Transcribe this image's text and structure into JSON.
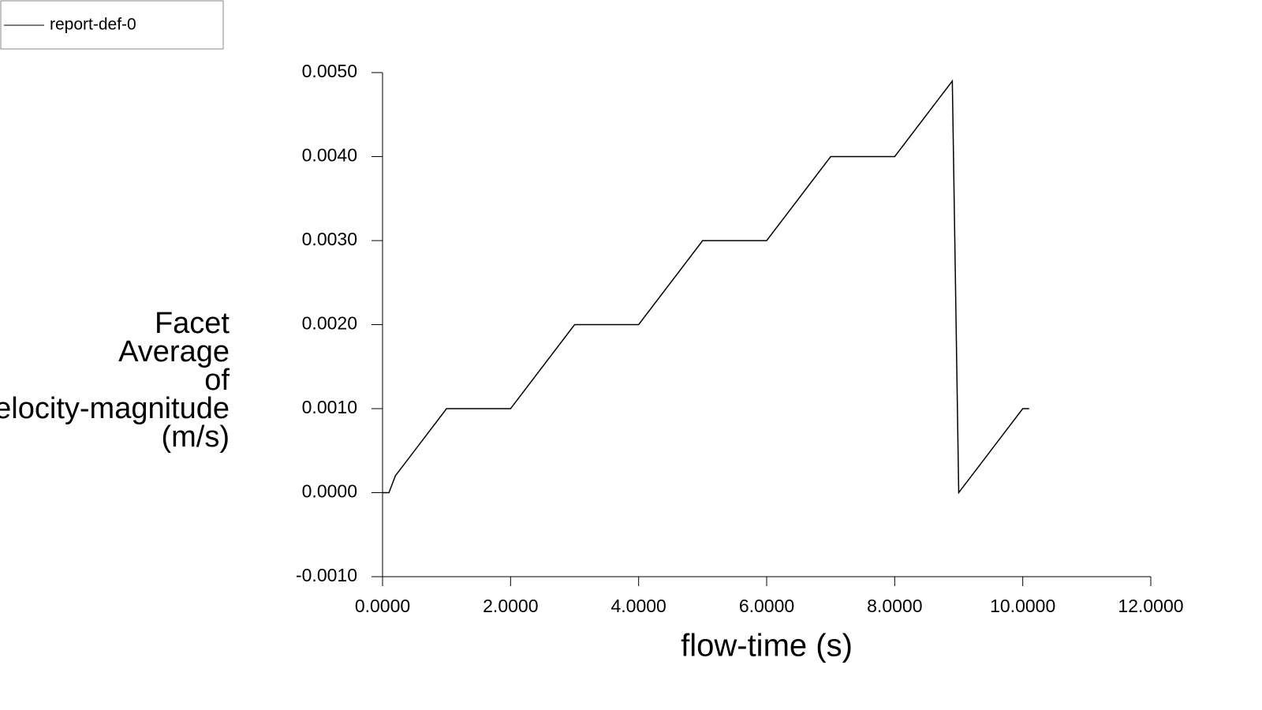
{
  "chart_data": {
    "type": "line",
    "xlabel": "flow-time (s)",
    "ylabel_lines": [
      "Facet",
      "Average",
      "of",
      "Velocity-magnitude",
      "(m/s)"
    ],
    "series": [
      {
        "name": "report-def-0",
        "color": "#000000",
        "x": [
          0,
          0.1,
          0.2,
          1,
          2,
          3,
          4,
          5,
          6,
          7,
          8,
          8.9,
          9,
          10,
          10.1
        ],
        "values": [
          0,
          0,
          0.0002,
          0.001,
          0.001,
          0.002,
          0.002,
          0.003,
          0.003,
          0.004,
          0.004,
          0.0049,
          0,
          0.001,
          0.001
        ]
      }
    ],
    "xlim": [
      0,
      12
    ],
    "xticks": [
      {
        "value": 0,
        "label": "0.0000"
      },
      {
        "value": 2,
        "label": "2.0000"
      },
      {
        "value": 4,
        "label": "4.0000"
      },
      {
        "value": 6,
        "label": "6.0000"
      },
      {
        "value": 8,
        "label": "8.0000"
      },
      {
        "value": 10,
        "label": "10.0000"
      },
      {
        "value": 12,
        "label": "12.0000"
      }
    ],
    "ylim": [
      -0.001,
      0.005
    ],
    "yticks": [
      {
        "value": -0.001,
        "label": "-0.0010"
      },
      {
        "value": 0,
        "label": "0.0000"
      },
      {
        "value": 0.001,
        "label": "0.0010"
      },
      {
        "value": 0.002,
        "label": "0.0020"
      },
      {
        "value": 0.003,
        "label": "0.0030"
      },
      {
        "value": 0.004,
        "label": "0.0040"
      },
      {
        "value": 0.005,
        "label": "0.0050"
      }
    ],
    "legend": "top-left"
  }
}
